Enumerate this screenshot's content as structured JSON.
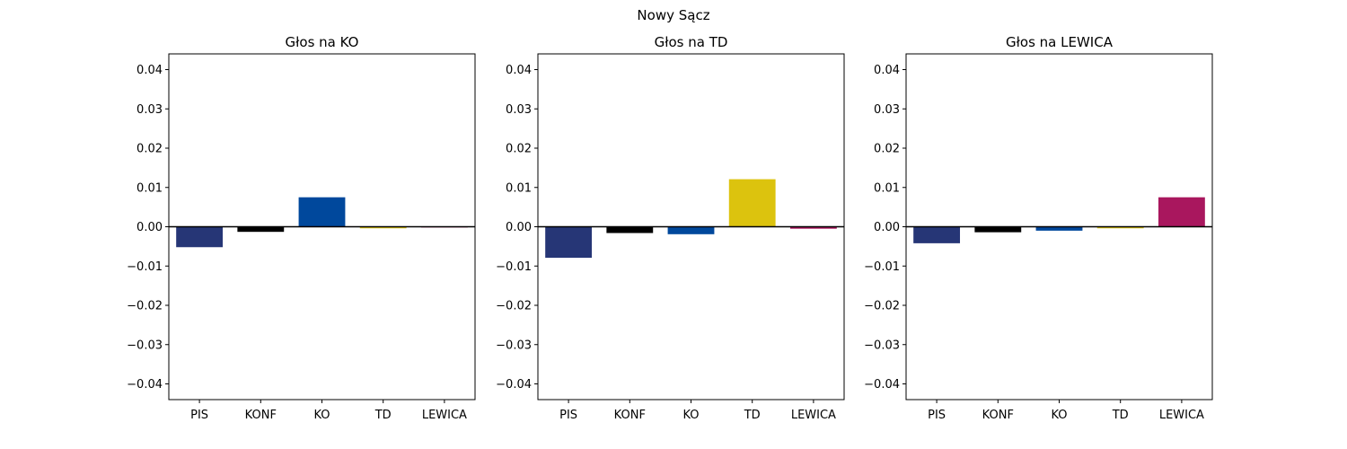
{
  "figure": {
    "title": "Nowy Sącz"
  },
  "chart_data": [
    {
      "type": "bar",
      "title": "Głos na KO",
      "categories": [
        "PIS",
        "KONF",
        "KO",
        "TD",
        "LEWICA"
      ],
      "values": [
        -0.0052,
        -0.0013,
        0.0075,
        -0.0004,
        -0.0001
      ],
      "colors": [
        "#263676",
        "#000000",
        "#00489c",
        "#dcc30e",
        "#a9175e"
      ],
      "ylim": [
        -0.044,
        0.044
      ],
      "yticks": [
        0.04,
        0.03,
        0.02,
        0.01,
        0.0,
        -0.01,
        -0.02,
        -0.03,
        -0.04
      ],
      "ytick_labels": [
        "0.04",
        "0.03",
        "0.02",
        "0.01",
        "0.00",
        "−0.01",
        "−0.02",
        "−0.03",
        "−0.04"
      ],
      "zero_line": true,
      "grid": false
    },
    {
      "type": "bar",
      "title": "Głos na TD",
      "categories": [
        "PIS",
        "KONF",
        "KO",
        "TD",
        "LEWICA"
      ],
      "values": [
        -0.0079,
        -0.0016,
        -0.0019,
        0.0121,
        -0.0005
      ],
      "colors": [
        "#263676",
        "#000000",
        "#00489c",
        "#dcc30e",
        "#a9175e"
      ],
      "ylim": [
        -0.044,
        0.044
      ],
      "yticks": [
        0.04,
        0.03,
        0.02,
        0.01,
        0.0,
        -0.01,
        -0.02,
        -0.03,
        -0.04
      ],
      "ytick_labels": [
        "0.04",
        "0.03",
        "0.02",
        "0.01",
        "0.00",
        "−0.01",
        "−0.02",
        "−0.03",
        "−0.04"
      ],
      "zero_line": true,
      "grid": false
    },
    {
      "type": "bar",
      "title": "Głos na LEWICA",
      "categories": [
        "PIS",
        "KONF",
        "KO",
        "TD",
        "LEWICA"
      ],
      "values": [
        -0.0042,
        -0.0014,
        -0.001,
        -0.0004,
        0.0075
      ],
      "colors": [
        "#263676",
        "#000000",
        "#00489c",
        "#dcc30e",
        "#a9175e"
      ],
      "ylim": [
        -0.044,
        0.044
      ],
      "yticks": [
        0.04,
        0.03,
        0.02,
        0.01,
        0.0,
        -0.01,
        -0.02,
        -0.03,
        -0.04
      ],
      "ytick_labels": [
        "0.04",
        "0.03",
        "0.02",
        "0.01",
        "0.00",
        "−0.01",
        "−0.02",
        "−0.03",
        "−0.04"
      ],
      "zero_line": true,
      "grid": false
    }
  ]
}
